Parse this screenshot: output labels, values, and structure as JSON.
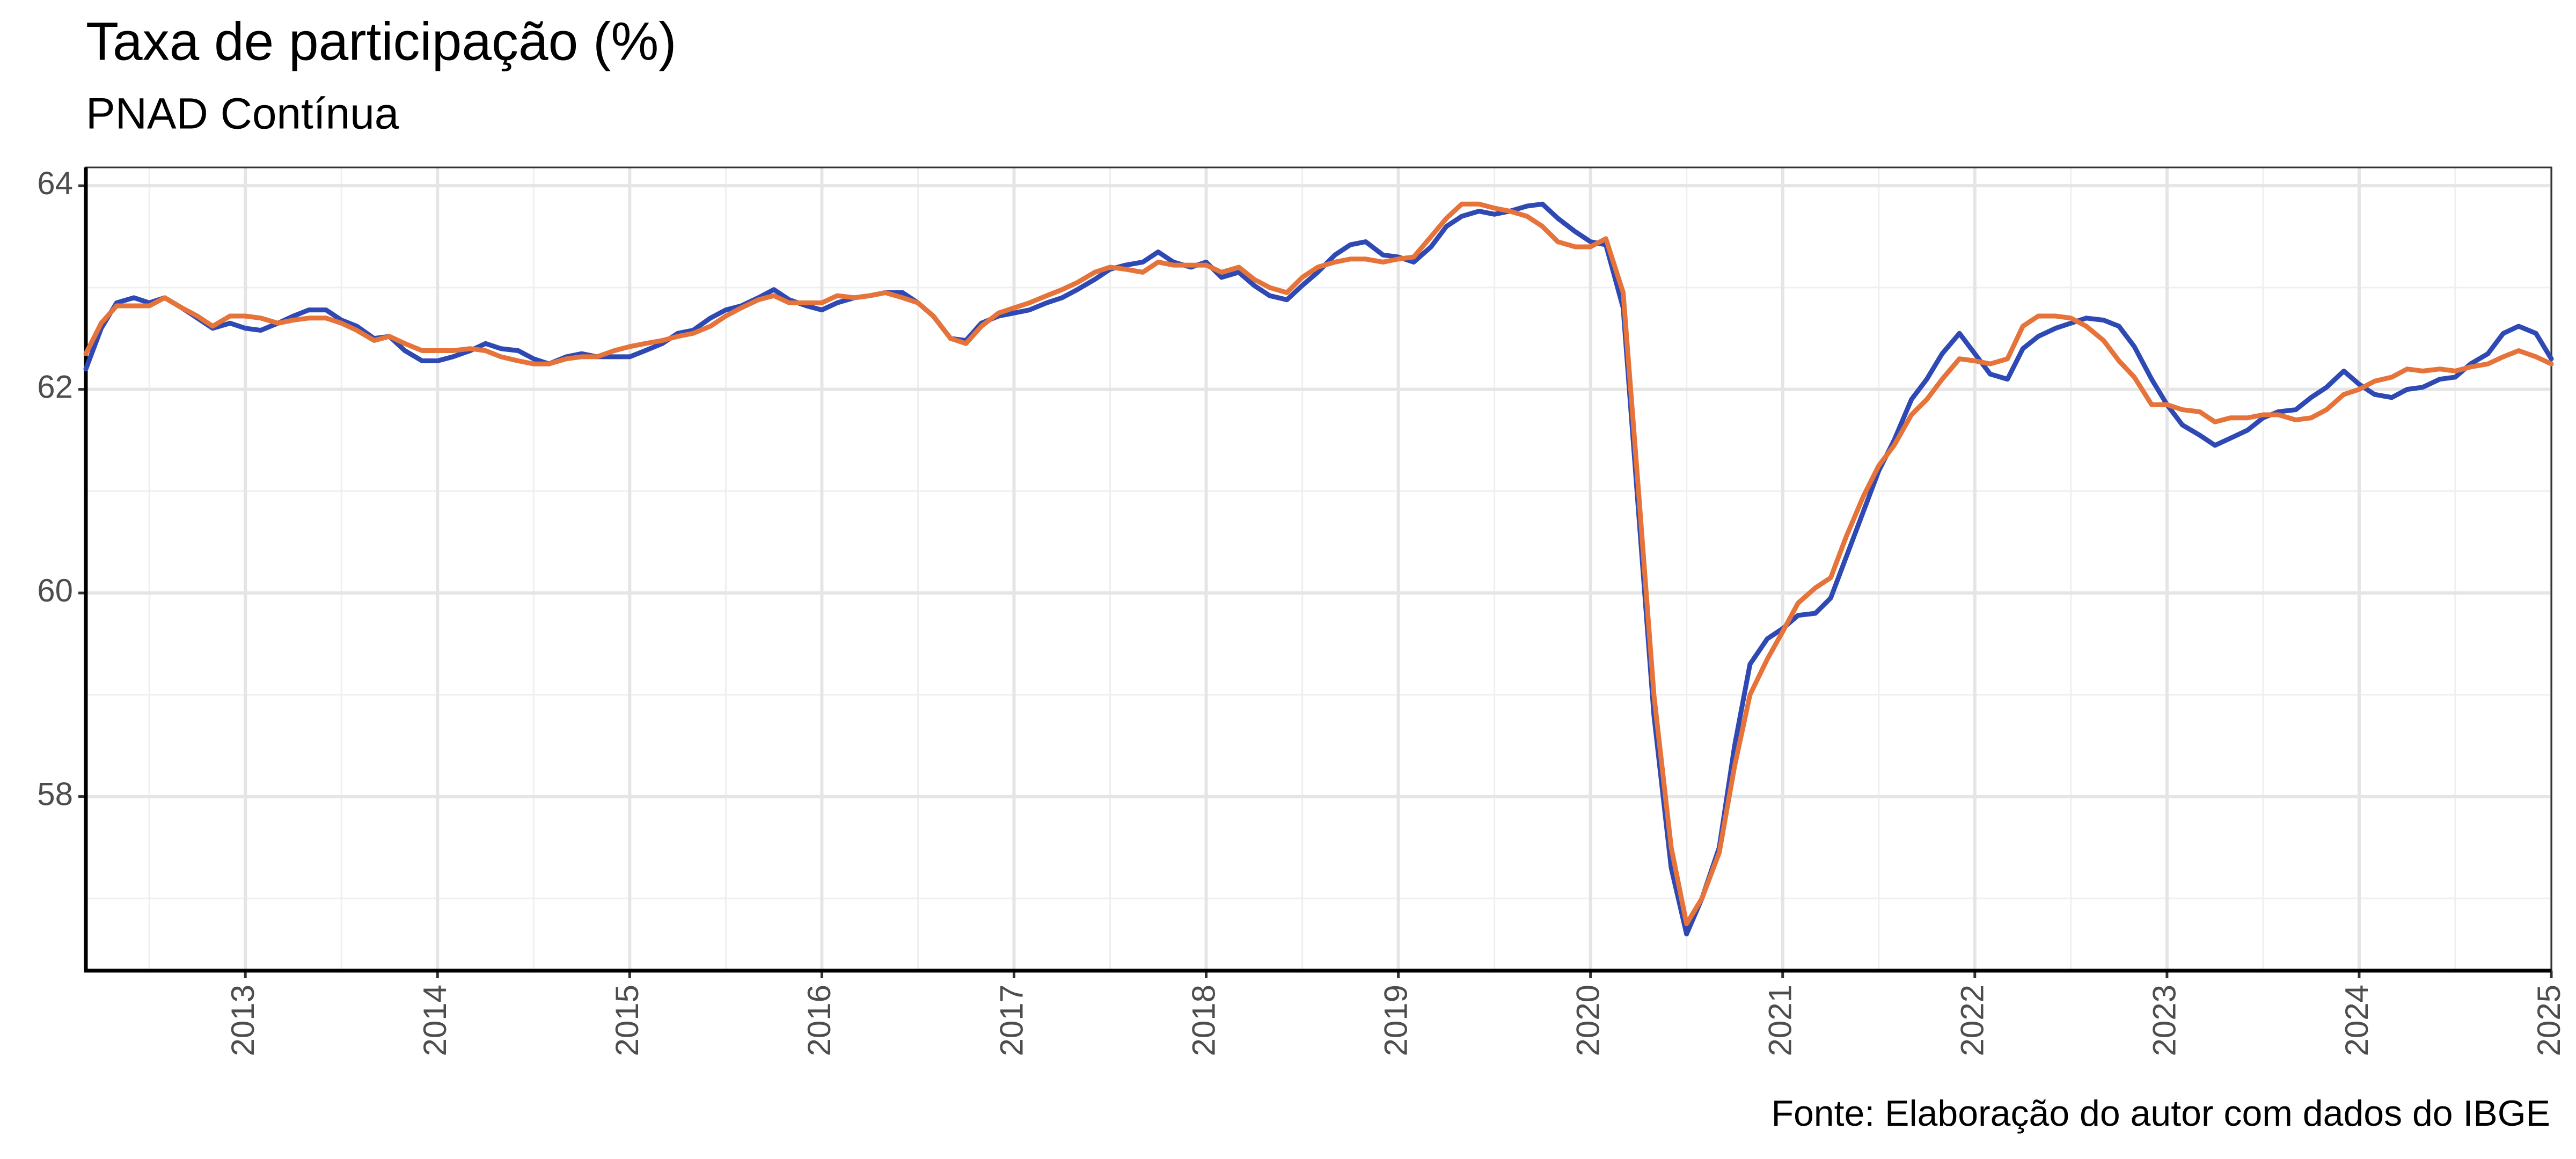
{
  "chart_data": {
    "type": "line",
    "title": "Taxa de participação (%)",
    "subtitle": "PNAD Contínua",
    "caption": "Fonte: Elaboração do autor com dados do IBGE",
    "x": [
      2012.17,
      2012.25,
      2012.33,
      2012.42,
      2012.5,
      2012.58,
      2012.67,
      2012.75,
      2012.83,
      2012.92,
      2013,
      2013.08,
      2013.17,
      2013.25,
      2013.33,
      2013.42,
      2013.5,
      2013.58,
      2013.67,
      2013.75,
      2013.83,
      2013.92,
      2014,
      2014.08,
      2014.17,
      2014.25,
      2014.33,
      2014.42,
      2014.5,
      2014.58,
      2014.67,
      2014.75,
      2014.83,
      2014.92,
      2015,
      2015.08,
      2015.17,
      2015.25,
      2015.33,
      2015.42,
      2015.5,
      2015.58,
      2015.67,
      2015.75,
      2015.83,
      2015.92,
      2016,
      2016.08,
      2016.17,
      2016.25,
      2016.33,
      2016.42,
      2016.5,
      2016.58,
      2016.67,
      2016.75,
      2016.83,
      2016.92,
      2017,
      2017.08,
      2017.17,
      2017.25,
      2017.33,
      2017.42,
      2017.5,
      2017.58,
      2017.67,
      2017.75,
      2017.83,
      2017.92,
      2018,
      2018.08,
      2018.17,
      2018.25,
      2018.33,
      2018.42,
      2018.5,
      2018.58,
      2018.67,
      2018.75,
      2018.83,
      2018.92,
      2019,
      2019.08,
      2019.17,
      2019.25,
      2019.33,
      2019.42,
      2019.5,
      2019.58,
      2019.67,
      2019.75,
      2019.83,
      2019.92,
      2020,
      2020.08,
      2020.17,
      2020.25,
      2020.33,
      2020.42,
      2020.5,
      2020.58,
      2020.67,
      2020.75,
      2020.83,
      2020.92,
      2021,
      2021.08,
      2021.17,
      2021.25,
      2021.33,
      2021.42,
      2021.5,
      2021.58,
      2021.67,
      2021.75,
      2021.83,
      2021.92,
      2022,
      2022.08,
      2022.17,
      2022.25,
      2022.33,
      2022.42,
      2022.5,
      2022.58,
      2022.67,
      2022.75,
      2022.83,
      2022.92,
      2023,
      2023.08,
      2023.17,
      2023.25,
      2023.33,
      2023.42,
      2023.5,
      2023.58,
      2023.67,
      2023.75,
      2023.83,
      2023.92,
      2024,
      2024.08,
      2024.17,
      2024.25,
      2024.33,
      2024.42,
      2024.5,
      2024.58,
      2024.67,
      2024.75,
      2024.83,
      2024.92,
      2025
    ],
    "series": [
      {
        "color": "#2f49b4",
        "values": [
          62.2,
          62.6,
          62.85,
          62.9,
          62.85,
          62.9,
          62.8,
          62.7,
          62.6,
          62.65,
          62.6,
          62.58,
          62.65,
          62.72,
          62.78,
          62.78,
          62.68,
          62.62,
          62.5,
          62.52,
          62.38,
          62.28,
          62.28,
          62.32,
          62.38,
          62.45,
          62.4,
          62.38,
          62.3,
          62.25,
          62.32,
          62.35,
          62.32,
          62.32,
          62.32,
          62.38,
          62.45,
          62.55,
          62.58,
          62.7,
          62.78,
          62.82,
          62.9,
          62.98,
          62.88,
          62.82,
          62.78,
          62.85,
          62.9,
          62.92,
          62.95,
          62.95,
          62.85,
          62.72,
          62.5,
          62.48,
          62.65,
          62.72,
          62.75,
          62.78,
          62.85,
          62.9,
          62.98,
          63.08,
          63.18,
          63.22,
          63.25,
          63.35,
          63.25,
          63.2,
          63.25,
          63.1,
          63.15,
          63.02,
          62.92,
          62.88,
          63.02,
          63.15,
          63.32,
          63.42,
          63.45,
          63.32,
          63.3,
          63.25,
          63.4,
          63.6,
          63.7,
          63.75,
          63.72,
          63.75,
          63.8,
          63.82,
          63.68,
          63.55,
          63.45,
          63.42,
          62.8,
          60.8,
          58.8,
          57.3,
          56.65,
          57.0,
          57.5,
          58.5,
          59.3,
          59.55,
          59.65,
          59.78,
          59.8,
          59.95,
          60.35,
          60.8,
          61.2,
          61.5,
          61.9,
          62.1,
          62.35,
          62.55,
          62.35,
          62.15,
          62.1,
          62.4,
          62.52,
          62.6,
          62.65,
          62.7,
          62.68,
          62.62,
          62.42,
          62.1,
          61.85,
          61.65,
          61.55,
          61.45,
          61.52,
          61.6,
          61.72,
          61.78,
          61.8,
          61.92,
          62.02,
          62.18,
          62.05,
          61.95,
          61.92,
          62.0,
          62.02,
          62.1,
          62.12,
          62.25,
          62.35,
          62.55,
          62.62,
          62.55,
          62.3
        ]
      },
      {
        "color": "#e5733a",
        "values": [
          62.35,
          62.65,
          62.82,
          62.82,
          62.82,
          62.9,
          62.8,
          62.72,
          62.62,
          62.72,
          62.72,
          62.7,
          62.65,
          62.68,
          62.7,
          62.7,
          62.65,
          62.58,
          62.48,
          62.52,
          62.45,
          62.38,
          62.38,
          62.38,
          62.4,
          62.38,
          62.32,
          62.28,
          62.25,
          62.25,
          62.3,
          62.32,
          62.32,
          62.38,
          62.42,
          62.45,
          62.48,
          62.52,
          62.55,
          62.62,
          62.72,
          62.8,
          62.88,
          62.92,
          62.85,
          62.85,
          62.85,
          62.92,
          62.9,
          62.92,
          62.95,
          62.9,
          62.85,
          62.72,
          62.5,
          62.45,
          62.62,
          62.75,
          62.8,
          62.85,
          62.92,
          62.98,
          63.05,
          63.15,
          63.2,
          63.18,
          63.15,
          63.25,
          63.22,
          63.22,
          63.22,
          63.15,
          63.2,
          63.08,
          63.0,
          62.95,
          63.1,
          63.2,
          63.25,
          63.28,
          63.28,
          63.25,
          63.28,
          63.3,
          63.5,
          63.68,
          63.82,
          63.82,
          63.78,
          63.75,
          63.7,
          63.6,
          63.45,
          63.4,
          63.4,
          63.48,
          62.95,
          61.0,
          59.0,
          57.5,
          56.75,
          57.0,
          57.45,
          58.3,
          59.0,
          59.35,
          59.62,
          59.9,
          60.05,
          60.15,
          60.55,
          60.95,
          61.25,
          61.45,
          61.75,
          61.9,
          62.1,
          62.3,
          62.28,
          62.25,
          62.3,
          62.62,
          62.72,
          62.72,
          62.7,
          62.62,
          62.48,
          62.28,
          62.12,
          61.85,
          61.85,
          61.8,
          61.78,
          61.68,
          61.72,
          61.72,
          61.75,
          61.75,
          61.7,
          61.72,
          61.8,
          61.95,
          62.0,
          62.08,
          62.12,
          62.2,
          62.18,
          62.2,
          62.18,
          62.22,
          62.25,
          62.32,
          62.38,
          62.32,
          62.25
        ]
      }
    ],
    "xlim": [
      2012.17,
      2025
    ],
    "xticks": [
      2013,
      2014,
      2015,
      2016,
      2017,
      2018,
      2019,
      2020,
      2021,
      2022,
      2023,
      2024,
      2025
    ],
    "ylim": [
      56.29,
      64.18
    ],
    "yticks": [
      58,
      60,
      62,
      64
    ],
    "grid": true
  }
}
